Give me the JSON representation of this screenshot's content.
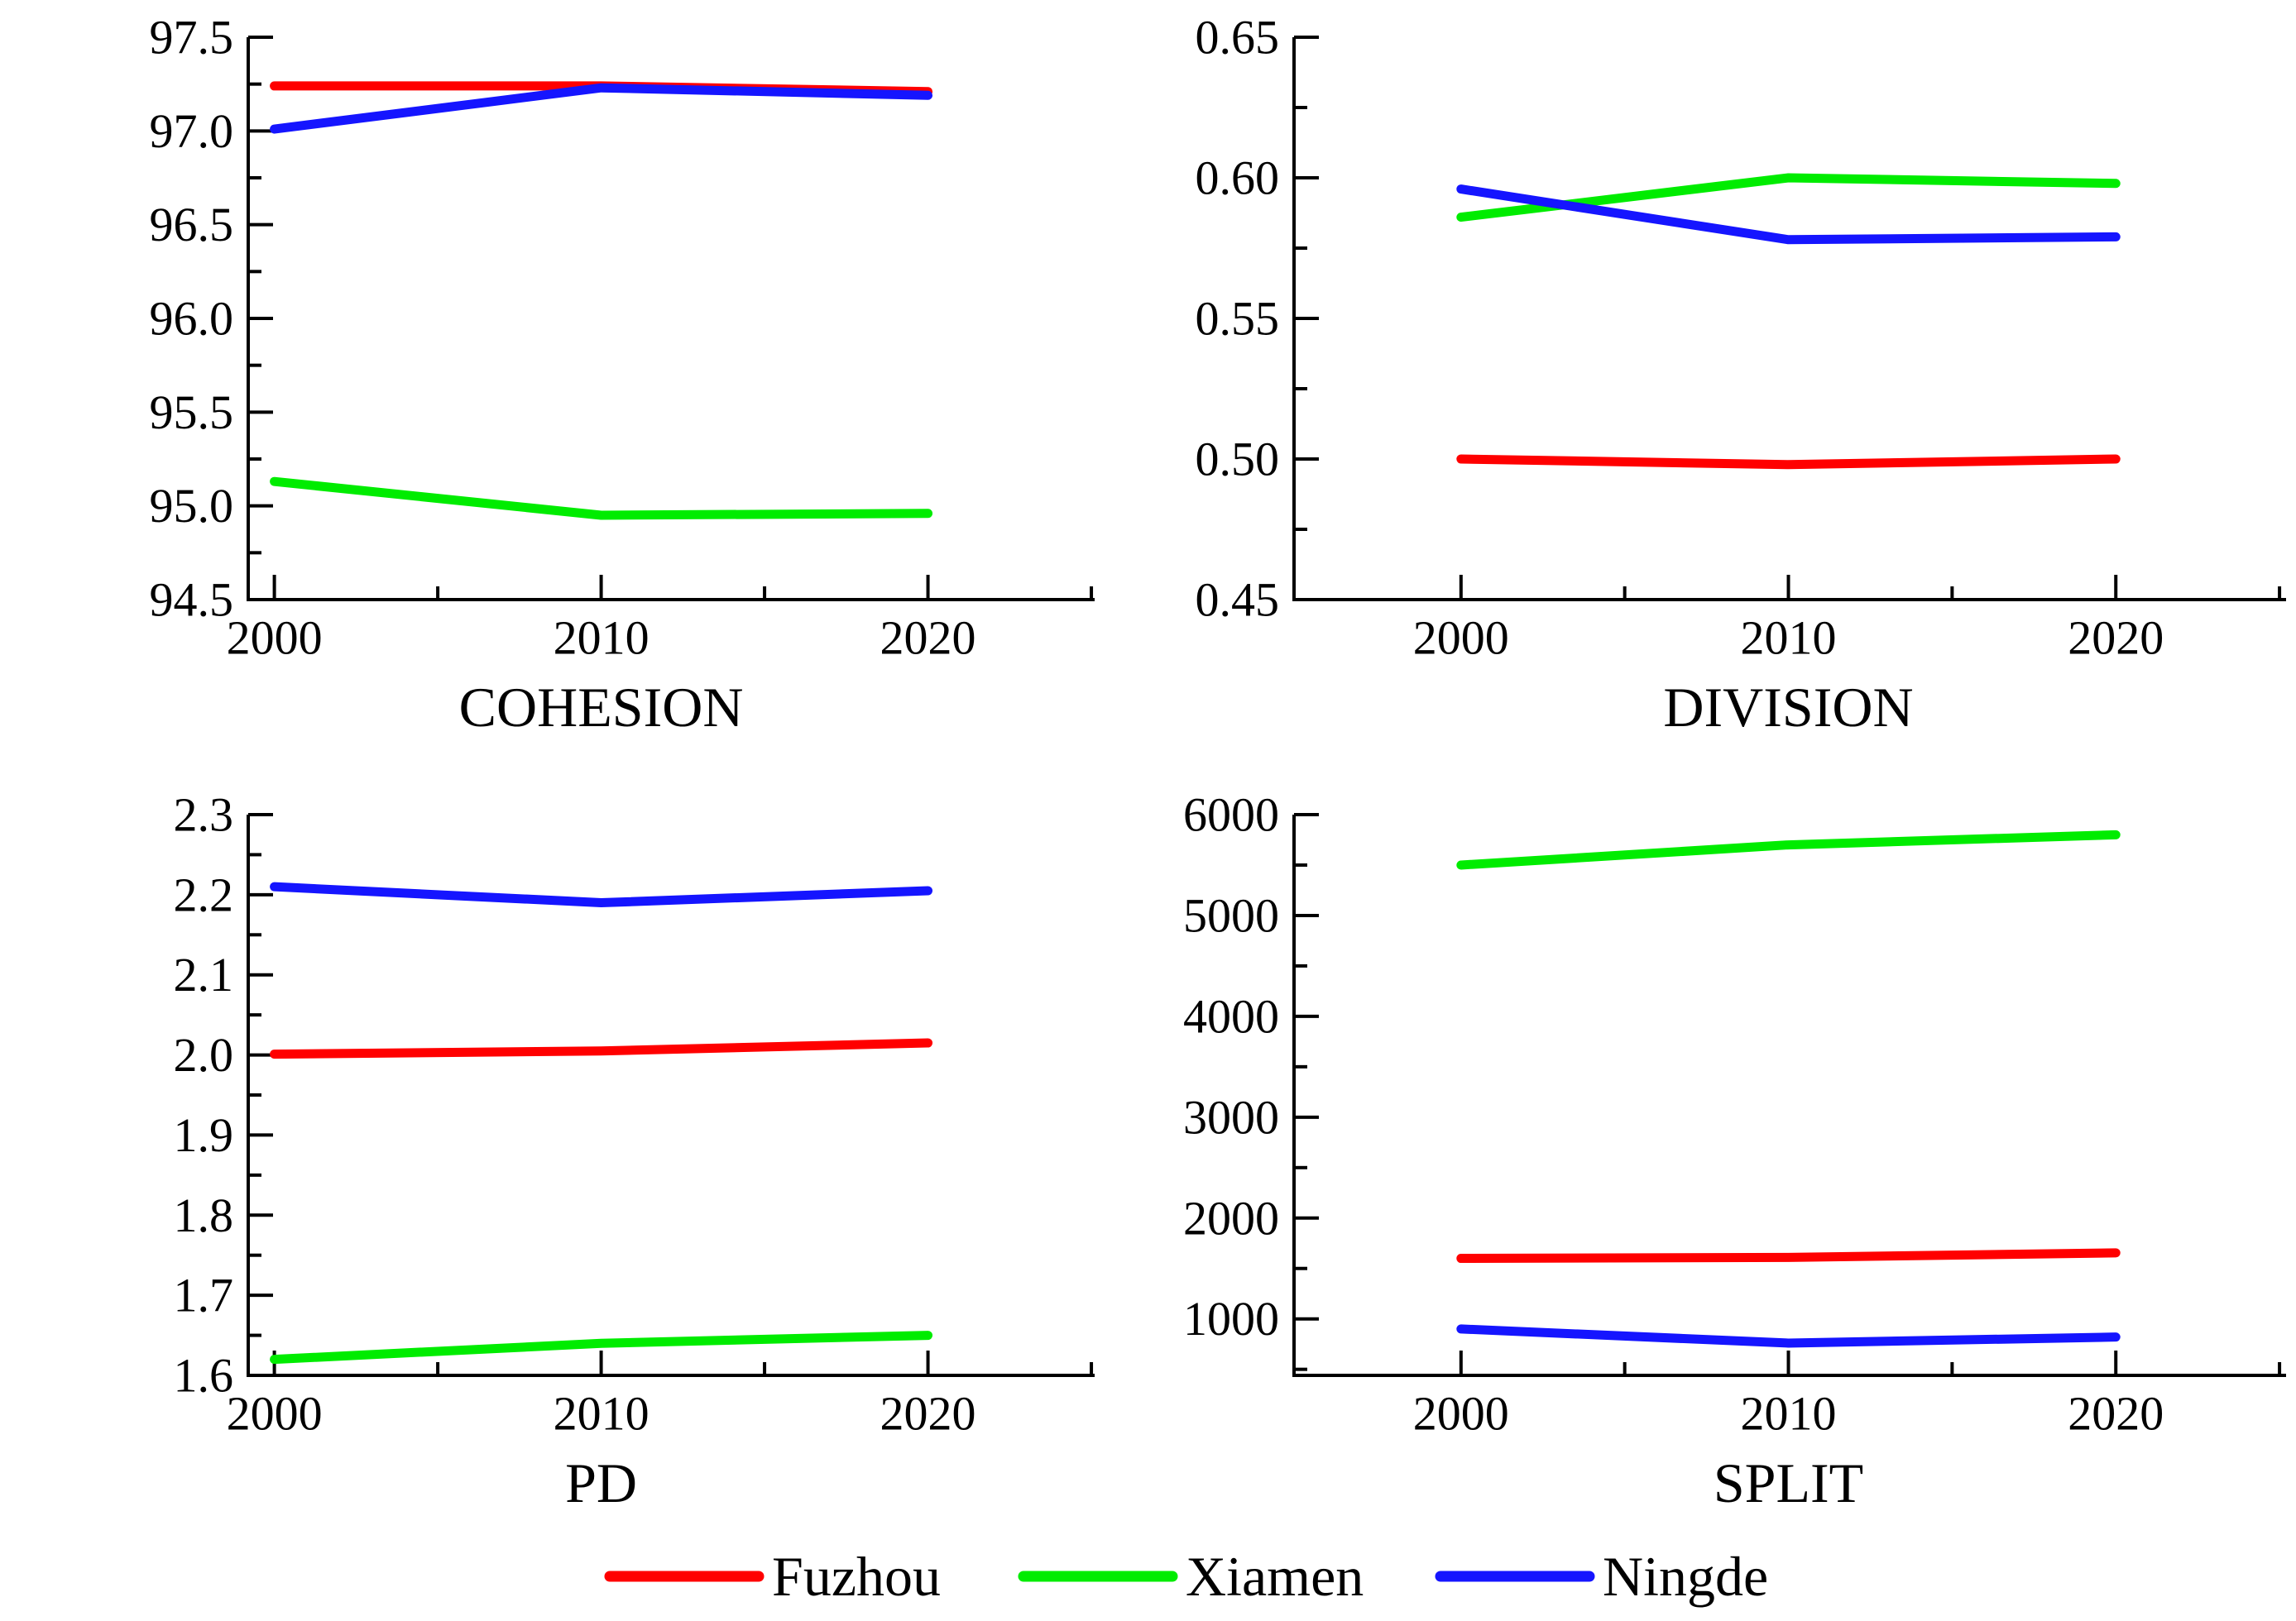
{
  "figure": {
    "background": "#ffffff",
    "axis_color": "#000000",
    "text_color": "#000000"
  },
  "legend": {
    "position": "bottom-center",
    "items": [
      {
        "label": "Fuzhou",
        "color": "#FF0000"
      },
      {
        "label": "Xiamen",
        "color": "#00EC00"
      },
      {
        "label": "Ningde",
        "color": "#1515FF"
      }
    ]
  },
  "chart_data": [
    {
      "key": "cohesion",
      "type": "line",
      "title": "COHESION",
      "xlabel": "",
      "ylabel": "",
      "x": [
        2000,
        2010,
        2020
      ],
      "xticks": [
        2000,
        2010,
        2020
      ],
      "xtick_labels": [
        "2000",
        "2010",
        "2020"
      ],
      "x_minor_ticks": [
        2005,
        2015,
        2025
      ],
      "xlim": [
        1999.2,
        2025.1
      ],
      "ylim": [
        94.5,
        97.5
      ],
      "ytick_vals": [
        97.5,
        97.0,
        96.5,
        96.0,
        95.5,
        95.0,
        94.5
      ],
      "ytick_labels": [
        "97.5",
        "97.0",
        "96.5",
        "96.0",
        "95.5",
        "95.0",
        "94.5"
      ],
      "y_minor_ticks": [
        97.25,
        96.75,
        96.25,
        95.75,
        95.25,
        94.75
      ],
      "grid": false,
      "series": [
        {
          "name": "Fuzhou",
          "color": "#FF0000",
          "values": [
            97.24,
            97.24,
            97.21
          ]
        },
        {
          "name": "Xiamen",
          "color": "#00EC00",
          "values": [
            95.13,
            94.95,
            94.96
          ]
        },
        {
          "name": "Ningde",
          "color": "#1515FF",
          "values": [
            97.01,
            97.23,
            97.19
          ]
        }
      ]
    },
    {
      "key": "division",
      "type": "line",
      "title": "DIVISION",
      "xlabel": "",
      "ylabel": "",
      "x": [
        2000,
        2010,
        2020
      ],
      "xticks": [
        2000,
        2010,
        2020
      ],
      "xtick_labels": [
        "2000",
        "2010",
        "2020"
      ],
      "x_minor_ticks": [
        2005,
        2015,
        2025
      ],
      "xlim": [
        1994.9,
        2025.2
      ],
      "ylim": [
        0.45,
        0.65
      ],
      "ytick_vals": [
        0.65,
        0.6,
        0.55,
        0.5,
        0.45
      ],
      "ytick_labels": [
        "0.65",
        "0.60",
        "0.55",
        "0.50",
        "0.45"
      ],
      "y_minor_ticks": [
        0.625,
        0.575,
        0.525,
        0.475
      ],
      "grid": false,
      "series": [
        {
          "name": "Fuzhou",
          "color": "#FF0000",
          "values": [
            0.5,
            0.498,
            0.5
          ]
        },
        {
          "name": "Xiamen",
          "color": "#00EC00",
          "values": [
            0.586,
            0.6,
            0.598
          ]
        },
        {
          "name": "Ningde",
          "color": "#1515FF",
          "values": [
            0.596,
            0.578,
            0.579
          ]
        }
      ]
    },
    {
      "key": "pd",
      "type": "line",
      "title": "PD",
      "xlabel": "",
      "ylabel": "",
      "x": [
        2000,
        2010,
        2020
      ],
      "xticks": [
        2000,
        2010,
        2020
      ],
      "xtick_labels": [
        "2000",
        "2010",
        "2020"
      ],
      "x_minor_ticks": [
        2005,
        2015,
        2025
      ],
      "xlim": [
        1999.2,
        2025.1
      ],
      "ylim": [
        1.6,
        2.3
      ],
      "ytick_vals": [
        2.3,
        2.2,
        2.1,
        2.0,
        1.9,
        1.8,
        1.7,
        1.6
      ],
      "ytick_labels": [
        "2.3",
        "2.2",
        "2.1",
        "2.0",
        "1.9",
        "1.8",
        "1.7",
        "1.6"
      ],
      "y_minor_ticks": [
        2.25,
        2.15,
        2.05,
        1.95,
        1.85,
        1.75,
        1.65
      ],
      "grid": false,
      "series": [
        {
          "name": "Fuzhou",
          "color": "#FF0000",
          "values": [
            2.001,
            2.005,
            2.015
          ]
        },
        {
          "name": "Xiamen",
          "color": "#00EC00",
          "values": [
            1.62,
            1.64,
            1.65
          ]
        },
        {
          "name": "Ningde",
          "color": "#1515FF",
          "values": [
            2.21,
            2.19,
            2.205
          ]
        }
      ]
    },
    {
      "key": "split",
      "type": "line",
      "title": "SPLIT",
      "xlabel": "",
      "ylabel": "",
      "x": [
        2000,
        2010,
        2020
      ],
      "xticks": [
        2000,
        2010,
        2020
      ],
      "xtick_labels": [
        "2000",
        "2010",
        "2020"
      ],
      "x_minor_ticks": [
        2005,
        2015,
        2025
      ],
      "xlim": [
        1994.9,
        2025.2
      ],
      "ylim": [
        440,
        6000
      ],
      "ytick_vals": [
        6000,
        5000,
        4000,
        3000,
        2000,
        1000
      ],
      "ytick_labels": [
        "6000",
        "5000",
        "4000",
        "3000",
        "2000",
        "1000"
      ],
      "y_minor_ticks": [
        5500,
        4500,
        3500,
        2500,
        1500,
        500
      ],
      "grid": false,
      "series": [
        {
          "name": "Fuzhou",
          "color": "#FF0000",
          "values": [
            1600,
            1610,
            1655
          ]
        },
        {
          "name": "Xiamen",
          "color": "#00EC00",
          "values": [
            5500,
            5700,
            5800
          ]
        },
        {
          "name": "Ningde",
          "color": "#1515FF",
          "values": [
            900,
            760,
            820
          ]
        }
      ]
    }
  ]
}
